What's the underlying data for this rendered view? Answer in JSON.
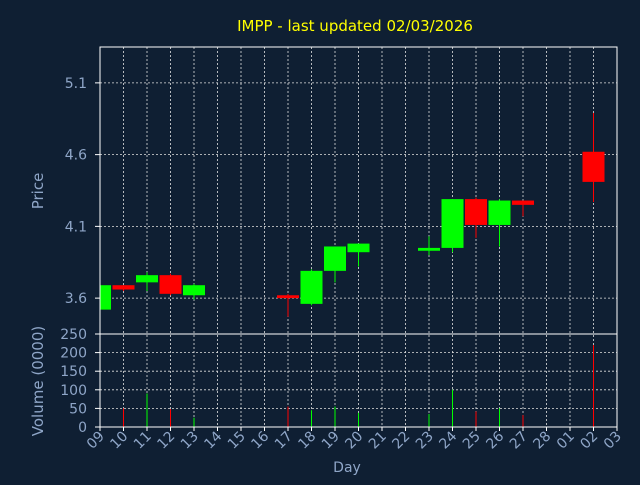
{
  "chart_data": {
    "type": "candlestick",
    "title": "IMPP - last updated 02/03/2026",
    "xlabel": "Day",
    "x_ticks": [
      "09",
      "10",
      "11",
      "12",
      "13",
      "14",
      "15",
      "16",
      "17",
      "18",
      "19",
      "20",
      "21",
      "22",
      "23",
      "24",
      "25",
      "26",
      "27",
      "28",
      "01",
      "02",
      "03"
    ],
    "price_panel": {
      "ylabel": "Price",
      "ylim": [
        3.35,
        5.35
      ],
      "y_ticks": [
        "3.6",
        "4.1",
        "4.6",
        "5.1"
      ],
      "y_tick_values": [
        3.6,
        4.1,
        4.6,
        5.1
      ]
    },
    "volume_panel": {
      "ylabel": "Volume (0000)",
      "ylim": [
        0,
        250
      ],
      "y_ticks": [
        "0",
        "50",
        "100",
        "150",
        "200",
        "250"
      ],
      "y_tick_values": [
        0,
        50,
        100,
        150,
        200,
        250
      ]
    },
    "candles": [
      {
        "day": "09",
        "open": 3.52,
        "high": 3.7,
        "low": 3.5,
        "close": 3.69,
        "volume": 0
      },
      {
        "day": "10",
        "open": 3.69,
        "high": 3.69,
        "low": 3.65,
        "close": 3.66,
        "volume": 50
      },
      {
        "day": "11",
        "open": 3.71,
        "high": 3.78,
        "low": 3.65,
        "close": 3.76,
        "volume": 90
      },
      {
        "day": "12",
        "open": 3.76,
        "high": 3.77,
        "low": 3.62,
        "close": 3.63,
        "volume": 48
      },
      {
        "day": "13",
        "open": 3.62,
        "high": 3.7,
        "low": 3.59,
        "close": 3.69,
        "volume": 25
      },
      {
        "day": "17",
        "open": 3.62,
        "high": 3.63,
        "low": 3.47,
        "close": 3.6,
        "volume": 55
      },
      {
        "day": "18",
        "open": 3.56,
        "high": 3.8,
        "low": 3.55,
        "close": 3.79,
        "volume": 45
      },
      {
        "day": "19",
        "open": 3.79,
        "high": 3.96,
        "low": 3.71,
        "close": 3.96,
        "volume": 55
      },
      {
        "day": "20",
        "open": 3.92,
        "high": 3.98,
        "low": 3.82,
        "close": 3.98,
        "volume": 38
      },
      {
        "day": "23",
        "open": 3.93,
        "high": 4.03,
        "low": 3.9,
        "close": 3.95,
        "volume": 35
      },
      {
        "day": "24",
        "open": 3.95,
        "high": 4.29,
        "low": 3.92,
        "close": 4.29,
        "volume": 100
      },
      {
        "day": "25",
        "open": 4.29,
        "high": 4.3,
        "low": 4.02,
        "close": 4.11,
        "volume": 42
      },
      {
        "day": "26",
        "open": 4.11,
        "high": 4.29,
        "low": 3.96,
        "close": 4.28,
        "volume": 50
      },
      {
        "day": "27",
        "open": 4.28,
        "high": 4.28,
        "low": 4.17,
        "close": 4.25,
        "volume": 32
      },
      {
        "day": "02",
        "open": 4.62,
        "high": 4.89,
        "low": 4.27,
        "close": 4.41,
        "volume": 220
      }
    ]
  },
  "colors": {
    "background": "#0f1f33",
    "grid": "#e0e0e0",
    "axis": "#ffffff",
    "title": "#ffff00",
    "labels": "#8fa6c8",
    "up": "#00ff00",
    "down": "#ff0000"
  }
}
